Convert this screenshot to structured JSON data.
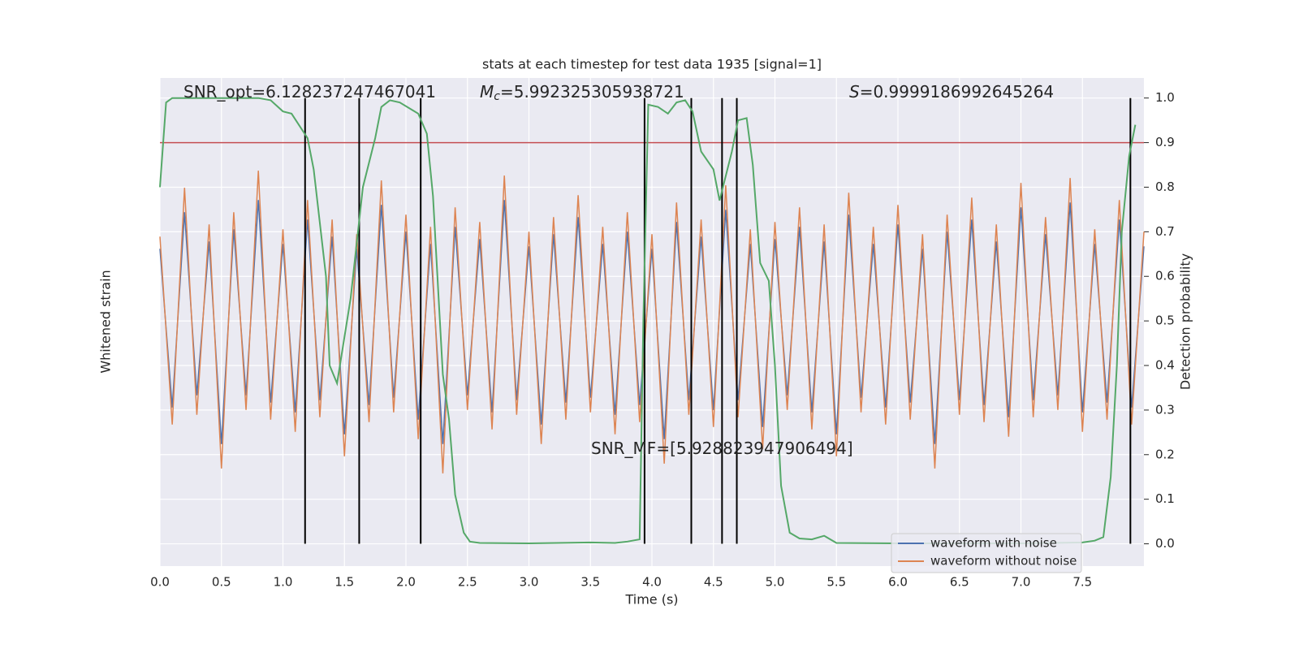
{
  "chart_data": {
    "type": "line",
    "title": "stats at each timestep for test data 1935 [signal=1]",
    "xlabel": "Time (s)",
    "ylabel": "Whitened strain",
    "y2label": "Detection probability",
    "xlim": [
      0,
      8.0
    ],
    "xticks": [
      {
        "value": 0,
        "label": "0.0"
      },
      0.5,
      {
        "value": 1,
        "label": "1.0"
      },
      1.5,
      {
        "value": 2,
        "label": "2.0"
      },
      2.5,
      {
        "value": 3,
        "label": "3.0"
      },
      3.5,
      {
        "value": 4,
        "label": "4.0"
      },
      4.5,
      {
        "value": 5,
        "label": "5.0"
      },
      5.5,
      {
        "value": 6,
        "label": "6.0"
      },
      6.5,
      {
        "value": 7,
        "label": "7.0"
      },
      7.5
    ],
    "ylim": [
      -1,
      1
    ],
    "y2lim": [
      -0.05,
      1.045
    ],
    "y2ticks": [
      {
        "value": 0,
        "label": "0.0"
      },
      0.1,
      0.2,
      0.3,
      0.4,
      0.5,
      0.6,
      0.7,
      0.8,
      0.9,
      {
        "value": 1,
        "label": "1.0"
      }
    ],
    "grid": true,
    "legend": "lower right",
    "x": [
      0,
      0.1,
      0.2,
      0.3,
      0.4,
      0.5,
      0.6,
      0.7,
      0.8,
      0.9,
      1,
      1.1,
      1.2,
      1.3,
      1.4,
      1.5,
      1.6,
      1.7,
      1.8,
      1.9,
      2,
      2.1,
      2.2,
      2.3,
      2.4,
      2.5,
      2.6,
      2.7,
      2.8,
      2.9,
      3,
      3.1,
      3.2,
      3.3,
      3.4,
      3.5,
      3.6,
      3.7,
      3.8,
      3.9,
      4,
      4.1,
      4.2,
      4.3,
      4.4,
      4.5,
      4.6,
      4.7,
      4.8,
      4.9,
      5,
      5.1,
      5.2,
      5.3,
      5.4,
      5.5,
      5.6,
      5.7,
      5.8,
      5.9,
      6,
      6.1,
      6.2,
      6.3,
      6.4,
      6.5,
      6.6,
      6.7,
      6.8,
      6.9,
      7,
      7.1,
      7.2,
      7.3,
      7.4,
      7.5,
      7.6,
      7.7,
      7.8,
      7.9,
      8
    ],
    "series": [
      {
        "name": "waveform with noise",
        "color": "#4c72b0",
        "values": [
          0.3,
          -0.35,
          0.45,
          -0.3,
          0.33,
          -0.5,
          0.38,
          -0.3,
          0.5,
          -0.33,
          0.32,
          -0.37,
          0.42,
          -0.32,
          0.35,
          -0.46,
          0.3,
          -0.34,
          0.48,
          -0.31,
          0.37,
          -0.4,
          0.32,
          -0.5,
          0.39,
          -0.3,
          0.34,
          -0.37,
          0.5,
          -0.32,
          0.31,
          -0.42,
          0.36,
          -0.33,
          0.43,
          -0.31,
          0.32,
          -0.38,
          0.37,
          -0.34,
          0.3,
          -0.48,
          0.41,
          -0.32,
          0.35,
          -0.36,
          0.46,
          -0.32,
          0.32,
          -0.43,
          0.34,
          -0.3,
          0.39,
          -0.37,
          0.33,
          -0.46,
          0.44,
          -0.31,
          0.32,
          -0.35,
          0.4,
          -0.33,
          0.3,
          -0.5,
          0.37,
          -0.32,
          0.42,
          -0.34,
          0.33,
          -0.39,
          0.47,
          -0.32,
          0.36,
          -0.3,
          0.49,
          -0.37,
          0.32,
          -0.33,
          0.42,
          -0.35,
          0.31
        ]
      },
      {
        "name": "waveform without noise",
        "color": "#dd8452",
        "values": [
          0.35,
          -0.42,
          0.55,
          -0.38,
          0.4,
          -0.6,
          0.45,
          -0.36,
          0.62,
          -0.4,
          0.38,
          -0.45,
          0.5,
          -0.39,
          0.42,
          -0.55,
          0.36,
          -0.41,
          0.58,
          -0.37,
          0.44,
          -0.48,
          0.39,
          -0.62,
          0.47,
          -0.36,
          0.41,
          -0.44,
          0.6,
          -0.38,
          0.37,
          -0.5,
          0.43,
          -0.4,
          0.52,
          -0.37,
          0.39,
          -0.46,
          0.45,
          -0.41,
          0.36,
          -0.58,
          0.49,
          -0.38,
          0.42,
          -0.43,
          0.56,
          -0.39,
          0.38,
          -0.52,
          0.41,
          -0.36,
          0.47,
          -0.44,
          0.4,
          -0.55,
          0.53,
          -0.37,
          0.39,
          -0.42,
          0.48,
          -0.4,
          0.36,
          -0.6,
          0.44,
          -0.38,
          0.51,
          -0.41,
          0.4,
          -0.47,
          0.57,
          -0.39,
          0.43,
          -0.36,
          0.59,
          -0.45,
          0.38,
          -0.4,
          0.5,
          -0.42,
          0.37
        ]
      }
    ],
    "probability": {
      "color": "#55a868",
      "axis": "y2",
      "x": [
        0,
        0.05,
        0.1,
        0.5,
        0.8,
        0.9,
        1.0,
        1.07,
        1.2,
        1.25,
        1.35,
        1.38,
        1.44,
        1.55,
        1.65,
        1.75,
        1.8,
        1.87,
        1.95,
        2.1,
        2.17,
        2.22,
        2.3,
        2.35,
        2.4,
        2.47,
        2.52,
        2.6,
        3.0,
        3.5,
        3.7,
        3.8,
        3.9,
        3.93,
        3.97,
        4.05,
        4.13,
        4.2,
        4.27,
        4.33,
        4.4,
        4.5,
        4.55,
        4.65,
        4.7,
        4.77,
        4.82,
        4.88,
        4.95,
        5.0,
        5.05,
        5.12,
        5.2,
        5.3,
        5.4,
        5.5,
        6.0,
        7.0,
        7.5,
        7.6,
        7.67,
        7.73,
        7.78,
        7.82,
        7.88,
        7.93
      ],
      "values": [
        0.8,
        0.99,
        1.0,
        1.0,
        1.0,
        0.995,
        0.97,
        0.965,
        0.91,
        0.84,
        0.6,
        0.4,
        0.36,
        0.55,
        0.8,
        0.91,
        0.98,
        0.995,
        0.99,
        0.965,
        0.92,
        0.78,
        0.38,
        0.28,
        0.11,
        0.025,
        0.005,
        0.002,
        0.001,
        0.003,
        0.002,
        0.005,
        0.01,
        0.5,
        0.985,
        0.98,
        0.965,
        0.99,
        0.995,
        0.97,
        0.88,
        0.84,
        0.77,
        0.88,
        0.95,
        0.955,
        0.85,
        0.63,
        0.59,
        0.4,
        0.13,
        0.025,
        0.012,
        0.01,
        0.018,
        0.002,
        0.001,
        0.001,
        0.003,
        0.007,
        0.015,
        0.15,
        0.4,
        0.7,
        0.87,
        0.94
      ]
    },
    "threshold": {
      "value": 0.9,
      "color": "#c44e52"
    },
    "events": {
      "color": "#000000",
      "x": [
        1.18,
        1.62,
        2.12,
        3.94,
        4.32,
        4.57,
        4.69,
        7.89
      ]
    },
    "annotations": [
      {
        "text": "SNR_opt=6.128237247467041"
      },
      {
        "italic": "M",
        "sub": "c",
        "text": "=5.992325305938721"
      },
      {
        "italic": "S",
        "text": "=0.9999186992645264"
      },
      {
        "text": "SNR_MF=[5.928823947906494]"
      }
    ]
  }
}
